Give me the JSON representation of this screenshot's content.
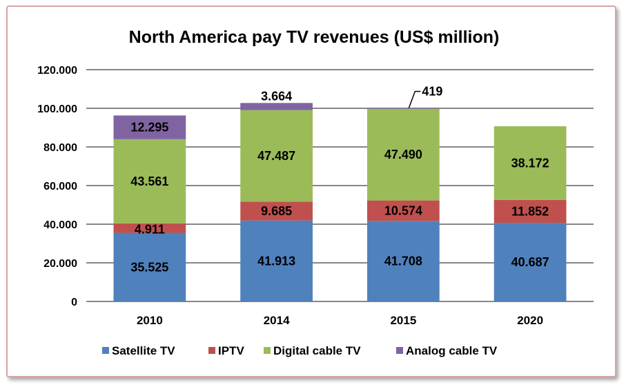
{
  "chart_data": {
    "type": "bar",
    "stacked": true,
    "title": "North America pay TV revenues (US$ million)",
    "xlabel": "",
    "ylabel": "",
    "categories": [
      "2010",
      "2014",
      "2015",
      "2020"
    ],
    "ylim": [
      0,
      120000
    ],
    "yticks": [
      0,
      20000,
      40000,
      60000,
      80000,
      100000,
      120000
    ],
    "ytick_labels": [
      "0",
      "20.000",
      "40.000",
      "60.000",
      "80.000",
      "100.000",
      "120.000"
    ],
    "grid": true,
    "legend_position": "bottom",
    "series": [
      {
        "name": "Satellite TV",
        "color": "#4f81bd",
        "values": [
          35525,
          41913,
          41708,
          40687
        ],
        "labels": [
          "35.525",
          "41.913",
          "41.708",
          "40.687"
        ]
      },
      {
        "name": "IPTV",
        "color": "#c0504d",
        "values": [
          4911,
          9685,
          10574,
          11852
        ],
        "labels": [
          "4.911",
          "9.685",
          "10.574",
          "11.852"
        ]
      },
      {
        "name": "Digital cable TV",
        "color": "#9bbb59",
        "values": [
          43561,
          47487,
          47490,
          38172
        ],
        "labels": [
          "43.561",
          "47.487",
          "47.490",
          "38.172"
        ]
      },
      {
        "name": "Analog cable TV",
        "color": "#8064a2",
        "values": [
          12295,
          3664,
          419,
          0
        ],
        "labels": [
          "12.295",
          "3.664",
          "419",
          ""
        ]
      }
    ]
  }
}
